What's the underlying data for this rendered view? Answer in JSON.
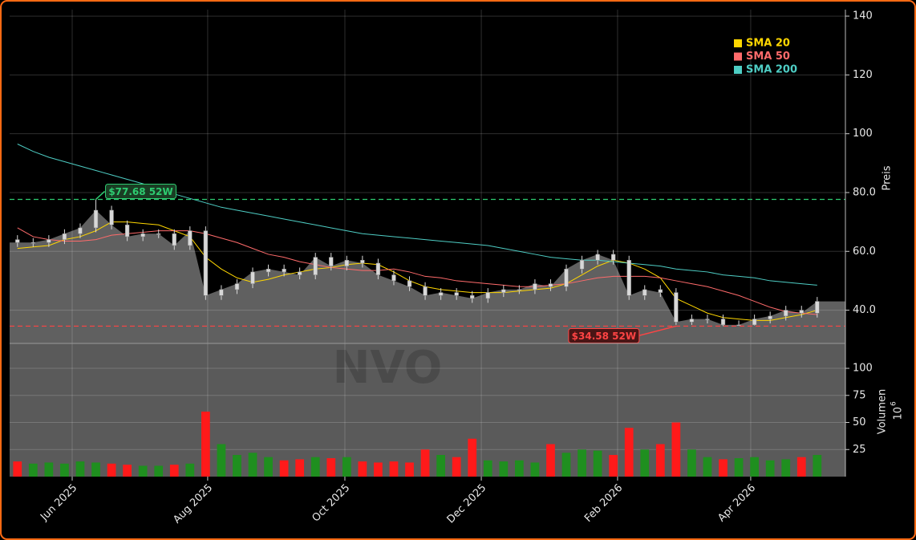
{
  "chart_data": {
    "type": "candlestick",
    "ticker": "NVO",
    "y_label": "Preis",
    "volume_label": "Volumen",
    "volume_unit_base": 10,
    "volume_unit_exponent": 6,
    "xlim": [
      0,
      53.3
    ],
    "xticks": [
      {
        "value": 3.99,
        "label": "Jun 2025"
      },
      {
        "value": 12.63,
        "label": "Aug 2025"
      },
      {
        "value": 21.38,
        "label": "Oct 2025"
      },
      {
        "value": 30.08,
        "label": "Dec 2025"
      },
      {
        "value": 38.77,
        "label": "Feb 2026"
      },
      {
        "value": 47.26,
        "label": "Apr 2026"
      }
    ],
    "ylim": [
      28.7,
      142.2
    ],
    "yticks": [
      {
        "value": 40,
        "label": "40.0"
      },
      {
        "value": 60,
        "label": "60.0"
      },
      {
        "value": 80,
        "label": "80.0"
      },
      100,
      120,
      140
    ],
    "volume_ylim": [
      0,
      123
    ],
    "volume_yticks": [
      25,
      50,
      75,
      100
    ],
    "grid": true,
    "legend": "upper right",
    "up_color": "#1f8f1f",
    "down_color": "#ff1a1a",
    "candle_color": "#d8d8d8",
    "area_color": "#606060",
    "open": [
      64,
      63,
      63,
      64,
      66,
      68,
      74,
      69,
      65,
      66,
      66,
      62,
      67,
      45,
      47,
      49,
      53,
      54,
      53,
      52,
      58,
      55,
      57,
      56,
      52,
      50,
      48,
      45,
      46,
      45,
      44,
      46,
      47,
      47,
      49,
      48,
      54,
      57,
      59,
      57,
      45,
      47,
      46,
      36,
      37,
      37,
      35,
      35,
      37,
      38,
      40,
      39
    ],
    "high": [
      65.5,
      64.5,
      65.5,
      67.5,
      69.5,
      77.68,
      75.5,
      70.5,
      67.5,
      67.5,
      67.5,
      68.5,
      68.5,
      48.5,
      50.5,
      54.5,
      55.5,
      55.5,
      54.5,
      59.5,
      59.5,
      58.5,
      58.5,
      57.5,
      53.5,
      51.5,
      49.5,
      47.5,
      47.5,
      46.5,
      47.5,
      48.5,
      48.5,
      50.5,
      50.5,
      55.5,
      58.5,
      60.5,
      60.5,
      58.5,
      48.5,
      48.5,
      47.5,
      38.5,
      38.5,
      38.5,
      36.5,
      38.5,
      39.5,
      41.5,
      41.5,
      44.5
    ],
    "low": [
      61.5,
      61.5,
      61.5,
      62.5,
      64.5,
      66.5,
      67.5,
      63.5,
      63.5,
      64.5,
      60.5,
      60.5,
      43.5,
      43.5,
      45.5,
      47.5,
      51.5,
      51.5,
      50.5,
      50.5,
      53.5,
      53.5,
      54.5,
      50.5,
      48.5,
      46.5,
      43.5,
      43.5,
      43.5,
      42.5,
      42.5,
      44.5,
      45.5,
      45.5,
      46.5,
      46.5,
      52.5,
      55.5,
      55.5,
      43.5,
      43.5,
      44.5,
      35,
      35,
      35.5,
      34.58,
      34.8,
      34.8,
      35.5,
      36.5,
      37.5,
      37.5
    ],
    "close": [
      63,
      63,
      64,
      66,
      68,
      74,
      69,
      65,
      66,
      66,
      62,
      67,
      45,
      47,
      49,
      53,
      54,
      53,
      52,
      58,
      55,
      57,
      56,
      52,
      50,
      48,
      45,
      46,
      45,
      44,
      46,
      47,
      47,
      49,
      48,
      54,
      57,
      59,
      57,
      45,
      47,
      46,
      36,
      37,
      37,
      35,
      35,
      37,
      38,
      40,
      39,
      43
    ],
    "volume": [
      14,
      12,
      13,
      12,
      14,
      13,
      12,
      11,
      10,
      10,
      11,
      12,
      60,
      30,
      20,
      22,
      18,
      15,
      16,
      18,
      17,
      18,
      14,
      13,
      14,
      13,
      25,
      20,
      18,
      35,
      15,
      14,
      15,
      13,
      30,
      22,
      25,
      24,
      20,
      45,
      25,
      30,
      50,
      25,
      18,
      16,
      17,
      18,
      15,
      16,
      18,
      20
    ],
    "series": [
      {
        "name": "SMA 20",
        "color": "#ffd700",
        "values": [
          61,
          61.5,
          62,
          64,
          65,
          67,
          70,
          70,
          69.5,
          69,
          67,
          65,
          58,
          54,
          51,
          49.5,
          50.5,
          52,
          53,
          54,
          54.5,
          55.5,
          56,
          55.5,
          53,
          50,
          48,
          47,
          46.5,
          46,
          46,
          46,
          46.5,
          47,
          47.5,
          49,
          52,
          55,
          57,
          56,
          54,
          51,
          44,
          41.5,
          39,
          37.5,
          37,
          36.5,
          36.5,
          37.5,
          38.5,
          40
        ]
      },
      {
        "name": "SMA 50",
        "color": "#ff6b6b",
        "values": [
          68,
          65,
          64,
          63.5,
          63.5,
          64,
          65.5,
          66,
          66.5,
          67,
          67,
          67,
          66,
          64.5,
          63,
          61,
          59,
          58,
          56.5,
          55.5,
          54.5,
          54,
          53.5,
          53.5,
          54,
          53,
          51.5,
          51,
          50,
          49.5,
          49,
          48.5,
          48,
          48,
          48.5,
          49,
          50,
          51,
          51.5,
          51.5,
          51.5,
          51,
          50,
          49,
          48,
          46.5,
          45,
          43,
          41,
          39.5,
          39,
          38.5
        ]
      },
      {
        "name": "SMA 200",
        "color": "#4ecdc4",
        "values": [
          96.5,
          94,
          92,
          90.5,
          89,
          87.5,
          86,
          84.5,
          83,
          81,
          79.5,
          78,
          76.5,
          75,
          74,
          73,
          72,
          71,
          70,
          69,
          68,
          67,
          66,
          65.5,
          65,
          64.5,
          64,
          63.5,
          63,
          62.5,
          62,
          61,
          60,
          59,
          58,
          57.5,
          57,
          57,
          56.5,
          56,
          55.5,
          55,
          54,
          53.5,
          53,
          52,
          51.5,
          51,
          50,
          49.5,
          49,
          48.5
        ]
      }
    ],
    "annotations": [
      {
        "text": "$77.68 52W",
        "value": 77.68,
        "index": 5,
        "color": "#2ecc71"
      },
      {
        "text": "$34.58 52W",
        "value": 34.58,
        "index": 42,
        "color": "#ff4444"
      }
    ]
  }
}
